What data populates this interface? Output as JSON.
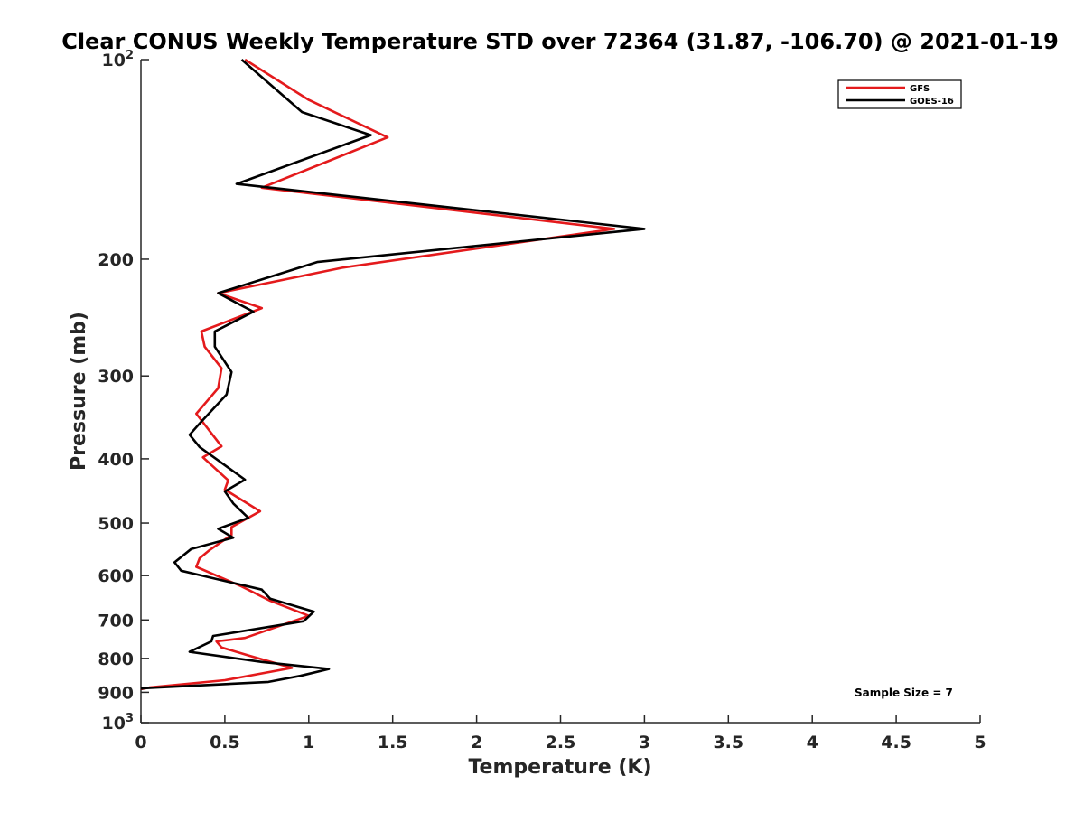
{
  "chart_data": {
    "type": "line",
    "title": "Clear CONUS Weekly Temperature STD over 72364 (31.87, -106.70) @ 2021-01-19",
    "xlabel": "Temperature (K)",
    "ylabel": "Pressure (mb)",
    "xlim": [
      0,
      5
    ],
    "ylim": [
      100,
      1000
    ],
    "y_scale": "log",
    "y_reversed": true,
    "grid": false,
    "legend_position": "top-right",
    "x_ticks": [
      "0",
      "0.5",
      "1",
      "1.5",
      "2",
      "2.5",
      "3",
      "3.5",
      "4",
      "4.5",
      "5"
    ],
    "y_ticks": [
      {
        "value": 100,
        "base": "10",
        "exp": "2"
      },
      {
        "value": 200,
        "label": "200"
      },
      {
        "value": 300,
        "label": "300"
      },
      {
        "value": 400,
        "label": "400"
      },
      {
        "value": 500,
        "label": "500"
      },
      {
        "value": 600,
        "label": "600"
      },
      {
        "value": 700,
        "label": "700"
      },
      {
        "value": 800,
        "label": "800"
      },
      {
        "value": 900,
        "label": "900"
      },
      {
        "value": 1000,
        "base": "10",
        "exp": "3"
      }
    ],
    "annotation": "Sample Size = 7",
    "series": [
      {
        "name": "GFS",
        "color": "#e41a1c",
        "points": [
          [
            0.62,
            100
          ],
          [
            1.0,
            115
          ],
          [
            1.47,
            131
          ],
          [
            0.72,
            156
          ],
          [
            2.82,
            180
          ],
          [
            1.2,
            206
          ],
          [
            0.46,
            225
          ],
          [
            0.72,
            237
          ],
          [
            0.36,
            257
          ],
          [
            0.38,
            271
          ],
          [
            0.48,
            292
          ],
          [
            0.46,
            313
          ],
          [
            0.33,
            342
          ],
          [
            0.48,
            383
          ],
          [
            0.37,
            398
          ],
          [
            0.52,
            431
          ],
          [
            0.5,
            445
          ],
          [
            0.71,
            480
          ],
          [
            0.54,
            507
          ],
          [
            0.54,
            521
          ],
          [
            0.41,
            549
          ],
          [
            0.35,
            565
          ],
          [
            0.33,
            582
          ],
          [
            0.6,
            623
          ],
          [
            0.77,
            655
          ],
          [
            1.0,
            690
          ],
          [
            0.62,
            745
          ],
          [
            0.45,
            754
          ],
          [
            0.48,
            770
          ],
          [
            0.65,
            793
          ],
          [
            0.9,
            827
          ],
          [
            0.5,
            863
          ],
          [
            0.05,
            885
          ],
          [
            0.0,
            890
          ]
        ]
      },
      {
        "name": "GOES-16",
        "color": "#000000",
        "points": [
          [
            0.6,
            100
          ],
          [
            0.96,
            120
          ],
          [
            1.37,
            130
          ],
          [
            0.57,
            154
          ],
          [
            3.0,
            180
          ],
          [
            1.05,
            202
          ],
          [
            0.46,
            225
          ],
          [
            0.67,
            240
          ],
          [
            0.44,
            257
          ],
          [
            0.44,
            271
          ],
          [
            0.54,
            296
          ],
          [
            0.51,
            320
          ],
          [
            0.34,
            356
          ],
          [
            0.29,
            368
          ],
          [
            0.35,
            384
          ],
          [
            0.62,
            430
          ],
          [
            0.5,
            448
          ],
          [
            0.55,
            467
          ],
          [
            0.64,
            491
          ],
          [
            0.46,
            510
          ],
          [
            0.55,
            526
          ],
          [
            0.3,
            547
          ],
          [
            0.2,
            573
          ],
          [
            0.24,
            590
          ],
          [
            0.72,
            630
          ],
          [
            0.77,
            650
          ],
          [
            1.03,
            680
          ],
          [
            0.97,
            703
          ],
          [
            0.43,
            740
          ],
          [
            0.42,
            754
          ],
          [
            0.29,
            782
          ],
          [
            0.72,
            810
          ],
          [
            1.12,
            830
          ],
          [
            0.95,
            850
          ],
          [
            0.76,
            868
          ],
          [
            0.02,
            887
          ],
          [
            0.0,
            889
          ]
        ]
      }
    ]
  }
}
